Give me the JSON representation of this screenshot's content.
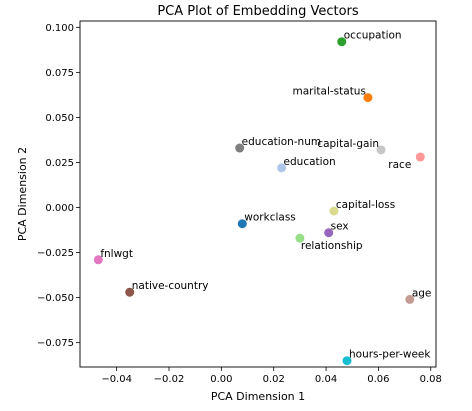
{
  "chart_data": {
    "type": "scatter",
    "title": "PCA Plot of Embedding Vectors",
    "xlabel": "PCA Dimension 1",
    "ylabel": "PCA Dimension 2",
    "xlim": [
      -0.054,
      0.082
    ],
    "ylim": [
      -0.0885,
      0.1035
    ],
    "x_ticks": [
      -0.04,
      -0.02,
      0.0,
      0.02,
      0.04,
      0.06,
      0.08
    ],
    "x_tick_labels": [
      "−0.04",
      "−0.02",
      "0.00",
      "0.02",
      "0.04",
      "0.06",
      "0.08"
    ],
    "y_ticks": [
      -0.075,
      -0.05,
      -0.025,
      0.0,
      0.025,
      0.05,
      0.075,
      0.1
    ],
    "y_tick_labels": [
      "−0.075",
      "−0.050",
      "−0.025",
      "0.000",
      "0.025",
      "0.050",
      "0.075",
      "0.100"
    ],
    "grid": false,
    "points": [
      {
        "label": "occupation",
        "x": 0.046,
        "y": 0.092,
        "color": "#2ca02c",
        "label_pos": "right"
      },
      {
        "label": "marital-status",
        "x": 0.056,
        "y": 0.061,
        "color": "#ff7f0e",
        "label_pos": "left"
      },
      {
        "label": "capital-gain",
        "x": 0.061,
        "y": 0.032,
        "color": "#c7c7c7",
        "label_pos": "left"
      },
      {
        "label": "race",
        "x": 0.076,
        "y": 0.028,
        "color": "#ff9896",
        "label_pos": "below-left"
      },
      {
        "label": "education-num",
        "x": 0.007,
        "y": 0.033,
        "color": "#7f7f7f",
        "label_pos": "right"
      },
      {
        "label": "education",
        "x": 0.023,
        "y": 0.022,
        "color": "#aec7e8",
        "label_pos": "right"
      },
      {
        "label": "capital-loss",
        "x": 0.043,
        "y": -0.002,
        "color": "#dbdb8d",
        "label_pos": "right"
      },
      {
        "label": "workclass",
        "x": 0.008,
        "y": -0.009,
        "color": "#1f77b4",
        "label_pos": "right"
      },
      {
        "label": "sex",
        "x": 0.041,
        "y": -0.014,
        "color": "#9467bd",
        "label_pos": "right"
      },
      {
        "label": "relationship",
        "x": 0.03,
        "y": -0.017,
        "color": "#98df8a",
        "label_pos": "below-right"
      },
      {
        "label": "fnlwgt",
        "x": -0.047,
        "y": -0.029,
        "color": "#e377c2",
        "label_pos": "right"
      },
      {
        "label": "native-country",
        "x": -0.035,
        "y": -0.047,
        "color": "#8c564b",
        "label_pos": "right"
      },
      {
        "label": "age",
        "x": 0.072,
        "y": -0.051,
        "color": "#c49c94",
        "label_pos": "right"
      },
      {
        "label": "hours-per-week",
        "x": 0.048,
        "y": -0.085,
        "color": "#17becf",
        "label_pos": "right"
      }
    ]
  }
}
